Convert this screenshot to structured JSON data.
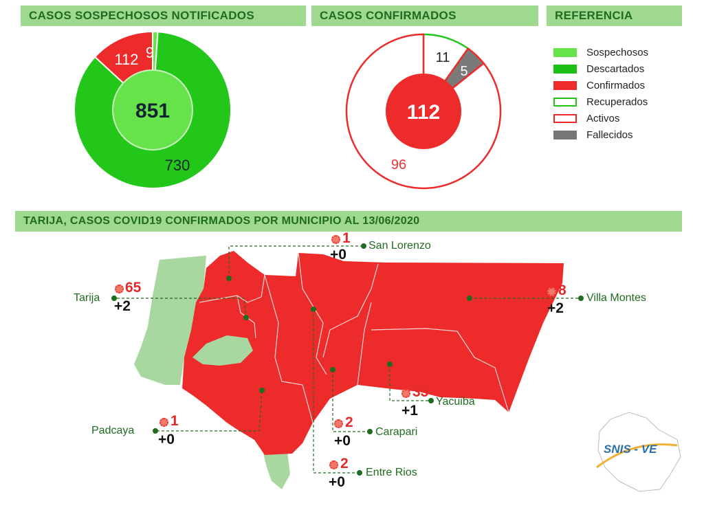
{
  "headers": {
    "left": "CASOS SOSPECHOSOS NOTIFICADOS",
    "mid": "CASOS CONFIRMADOS",
    "right": "REFERENCIA",
    "map": "TARIJA, CASOS COVID19 CONFIRMADOS POR MUNICIPIO AL 13/06/2020"
  },
  "colors": {
    "sospechosos": "#66e34a",
    "descartados": "#22c71a",
    "confirmados": "#ee2b2b",
    "recuperados": "#22c71a",
    "activos": "#ee2b2b",
    "fallecidos": "#777777",
    "region_grey": "#a8d8a0"
  },
  "legend": [
    {
      "label": "Sospechosos",
      "style": "fill",
      "color": "#66e34a"
    },
    {
      "label": "Descartados",
      "style": "fill",
      "color": "#1cbf14"
    },
    {
      "label": "Confirmados",
      "style": "fill",
      "color": "#ee2b2b"
    },
    {
      "label": "Recuperados",
      "style": "outline",
      "color": "#22c71a"
    },
    {
      "label": "Activos",
      "style": "outline",
      "color": "#ee2b2b"
    },
    {
      "label": "Fallecidos",
      "style": "fill",
      "color": "#777777"
    }
  ],
  "chart_data": [
    {
      "type": "pie",
      "title": "CASOS SOSPECHOSOS NOTIFICADOS",
      "center_total": "851",
      "slices": [
        {
          "label": "Descartados",
          "value": 730,
          "display": "730"
        },
        {
          "label": "Confirmados",
          "value": 112,
          "display": "112"
        },
        {
          "label": "Sospechosos",
          "value": 9,
          "display": "9"
        }
      ]
    },
    {
      "type": "pie",
      "title": "CASOS CONFIRMADOS",
      "center_total": "112",
      "slices": [
        {
          "label": "Activos",
          "value": 96,
          "display": "96"
        },
        {
          "label": "Recuperados",
          "value": 11,
          "display": "11"
        },
        {
          "label": "Fallecidos",
          "value": 5,
          "display": "5"
        }
      ]
    }
  ],
  "municipios": [
    {
      "name": "San Lorenzo",
      "casos": "1",
      "fallecidos": "+0"
    },
    {
      "name": "Tarija",
      "casos": "65",
      "fallecidos": "+2"
    },
    {
      "name": "Villa Montes",
      "casos": "8",
      "fallecidos": "+2"
    },
    {
      "name": "Padcaya",
      "casos": "1",
      "fallecidos": "+0"
    },
    {
      "name": "Yacuiba",
      "casos": "33",
      "fallecidos": "+1"
    },
    {
      "name": "Carapari",
      "casos": "2",
      "fallecidos": "+0"
    },
    {
      "name": "Entre Rios",
      "casos": "2",
      "fallecidos": "+0"
    }
  ],
  "logo": {
    "text": "SNIS - VE"
  }
}
